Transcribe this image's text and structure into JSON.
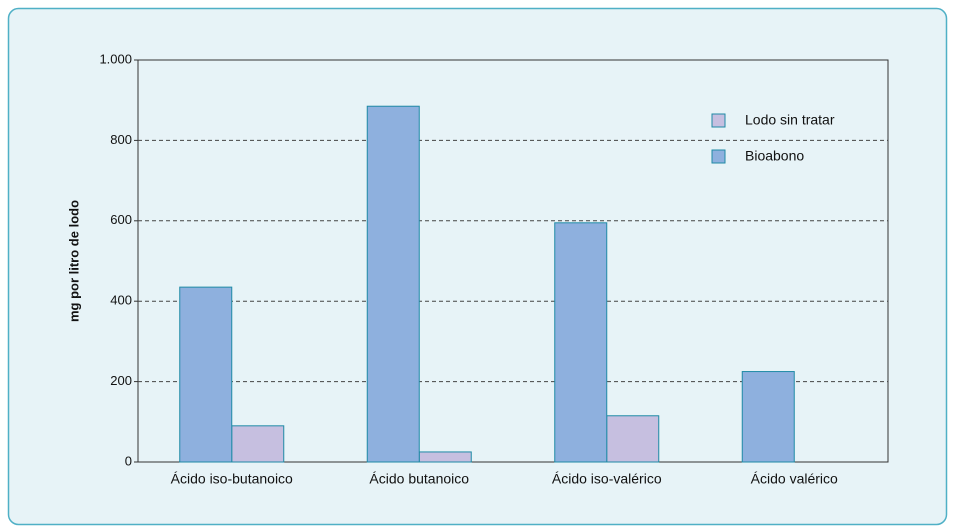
{
  "chart_data": {
    "type": "bar",
    "y_label": "mg por litro  de lodo",
    "categories": [
      "Ácido iso-butanoico",
      "Ácido butanoico",
      "Ácido iso-valérico",
      "Ácido valérico"
    ],
    "series": [
      {
        "name": "Lodo sin tratar",
        "color": "#c6bfe0",
        "values": [
          90,
          25,
          115,
          null
        ]
      },
      {
        "name": "Bioabono",
        "color": "#8eb0de",
        "values": [
          435,
          885,
          595,
          225
        ]
      }
    ],
    "ylim": [
      0,
      1000
    ],
    "yticks": [
      0,
      200,
      400,
      600,
      800,
      {
        "value": 1000,
        "label": "1.000"
      }
    ],
    "grid": true,
    "legend": "upper right"
  }
}
